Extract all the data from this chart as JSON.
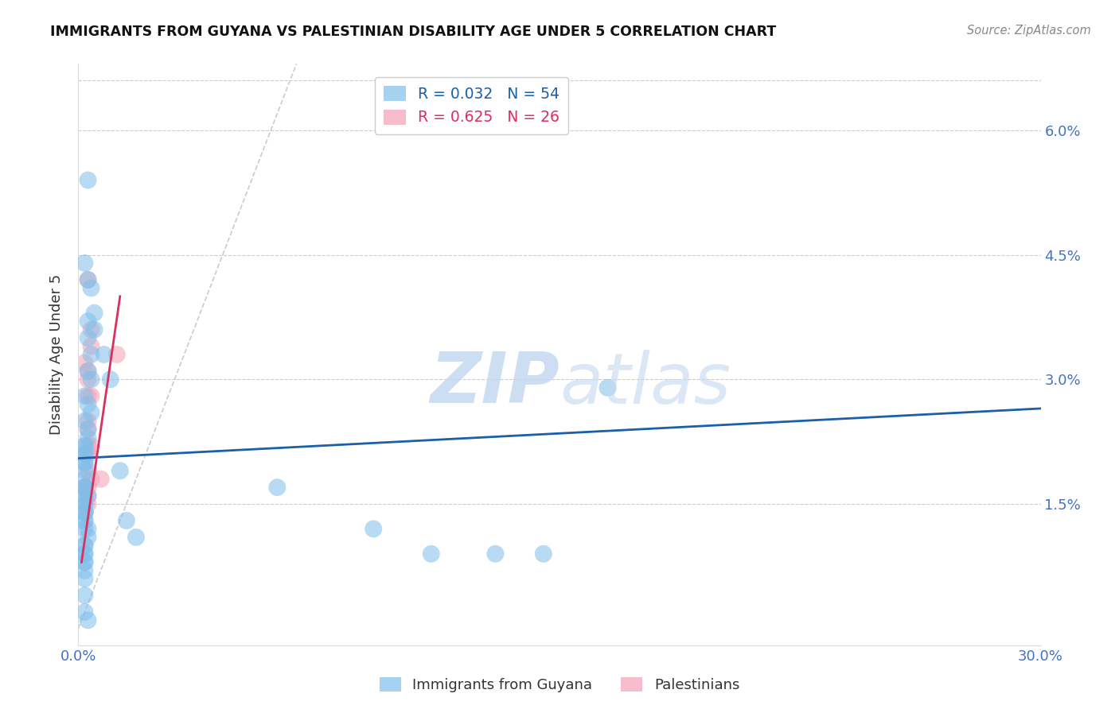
{
  "title": "IMMIGRANTS FROM GUYANA VS PALESTINIAN DISABILITY AGE UNDER 5 CORRELATION CHART",
  "source": "Source: ZipAtlas.com",
  "ylabel": "Disability Age Under 5",
  "ytick_labels": [
    "6.0%",
    "4.5%",
    "3.0%",
    "1.5%"
  ],
  "ytick_values": [
    0.06,
    0.045,
    0.03,
    0.015
  ],
  "xlim": [
    0.0,
    0.3
  ],
  "ylim": [
    -0.002,
    0.068
  ],
  "guyana_color": "#7fbfea",
  "palestinian_color": "#f4a0b5",
  "guyana_trendline_color": "#1a5fa8",
  "palestinian_trendline_color": "#d93060",
  "diagonal_line_color": "#cccccc",
  "guyana_points": [
    [
      0.003,
      0.054
    ],
    [
      0.002,
      0.044
    ],
    [
      0.003,
      0.042
    ],
    [
      0.004,
      0.041
    ],
    [
      0.005,
      0.038
    ],
    [
      0.003,
      0.037
    ],
    [
      0.005,
      0.036
    ],
    [
      0.003,
      0.035
    ],
    [
      0.004,
      0.033
    ],
    [
      0.003,
      0.031
    ],
    [
      0.004,
      0.03
    ],
    [
      0.002,
      0.028
    ],
    [
      0.003,
      0.027
    ],
    [
      0.004,
      0.026
    ],
    [
      0.002,
      0.025
    ],
    [
      0.003,
      0.024
    ],
    [
      0.003,
      0.023
    ],
    [
      0.002,
      0.022
    ],
    [
      0.002,
      0.022
    ],
    [
      0.002,
      0.021
    ],
    [
      0.002,
      0.021
    ],
    [
      0.002,
      0.02
    ],
    [
      0.002,
      0.02
    ],
    [
      0.002,
      0.019
    ],
    [
      0.002,
      0.018
    ],
    [
      0.002,
      0.017
    ],
    [
      0.002,
      0.017
    ],
    [
      0.002,
      0.016
    ],
    [
      0.003,
      0.016
    ],
    [
      0.002,
      0.015
    ],
    [
      0.002,
      0.015
    ],
    [
      0.002,
      0.014
    ],
    [
      0.002,
      0.014
    ],
    [
      0.002,
      0.013
    ],
    [
      0.002,
      0.013
    ],
    [
      0.002,
      0.012
    ],
    [
      0.003,
      0.012
    ],
    [
      0.003,
      0.011
    ],
    [
      0.002,
      0.01
    ],
    [
      0.002,
      0.01
    ],
    [
      0.002,
      0.009
    ],
    [
      0.002,
      0.009
    ],
    [
      0.002,
      0.008
    ],
    [
      0.002,
      0.008
    ],
    [
      0.002,
      0.007
    ],
    [
      0.002,
      0.006
    ],
    [
      0.002,
      0.004
    ],
    [
      0.002,
      0.002
    ],
    [
      0.008,
      0.033
    ],
    [
      0.01,
      0.03
    ],
    [
      0.013,
      0.019
    ],
    [
      0.015,
      0.013
    ],
    [
      0.018,
      0.011
    ],
    [
      0.165,
      0.029
    ],
    [
      0.062,
      0.017
    ],
    [
      0.092,
      0.012
    ],
    [
      0.11,
      0.009
    ],
    [
      0.13,
      0.009
    ],
    [
      0.145,
      0.009
    ],
    [
      0.003,
      0.001
    ]
  ],
  "palestinian_points": [
    [
      0.003,
      0.042
    ],
    [
      0.004,
      0.036
    ],
    [
      0.004,
      0.034
    ],
    [
      0.002,
      0.032
    ],
    [
      0.003,
      0.031
    ],
    [
      0.003,
      0.03
    ],
    [
      0.003,
      0.028
    ],
    [
      0.004,
      0.028
    ],
    [
      0.003,
      0.025
    ],
    [
      0.003,
      0.024
    ],
    [
      0.003,
      0.022
    ],
    [
      0.004,
      0.022
    ],
    [
      0.003,
      0.021
    ],
    [
      0.003,
      0.021
    ],
    [
      0.003,
      0.019
    ],
    [
      0.004,
      0.018
    ],
    [
      0.002,
      0.017
    ],
    [
      0.002,
      0.017
    ],
    [
      0.003,
      0.017
    ],
    [
      0.002,
      0.016
    ],
    [
      0.003,
      0.016
    ],
    [
      0.003,
      0.015
    ],
    [
      0.002,
      0.014
    ],
    [
      0.002,
      0.014
    ],
    [
      0.007,
      0.018
    ],
    [
      0.012,
      0.033
    ]
  ],
  "guyana_trend": {
    "x_start": 0.0,
    "y_start": 0.0205,
    "x_end": 0.3,
    "y_end": 0.0265
  },
  "palestinian_trend": {
    "x_start": 0.001,
    "y_start": 0.008,
    "x_end": 0.013,
    "y_end": 0.04
  },
  "diagonal_trend": {
    "x_start": 0.0,
    "y_start": 0.0,
    "x_end": 0.068,
    "y_end": 0.068
  }
}
